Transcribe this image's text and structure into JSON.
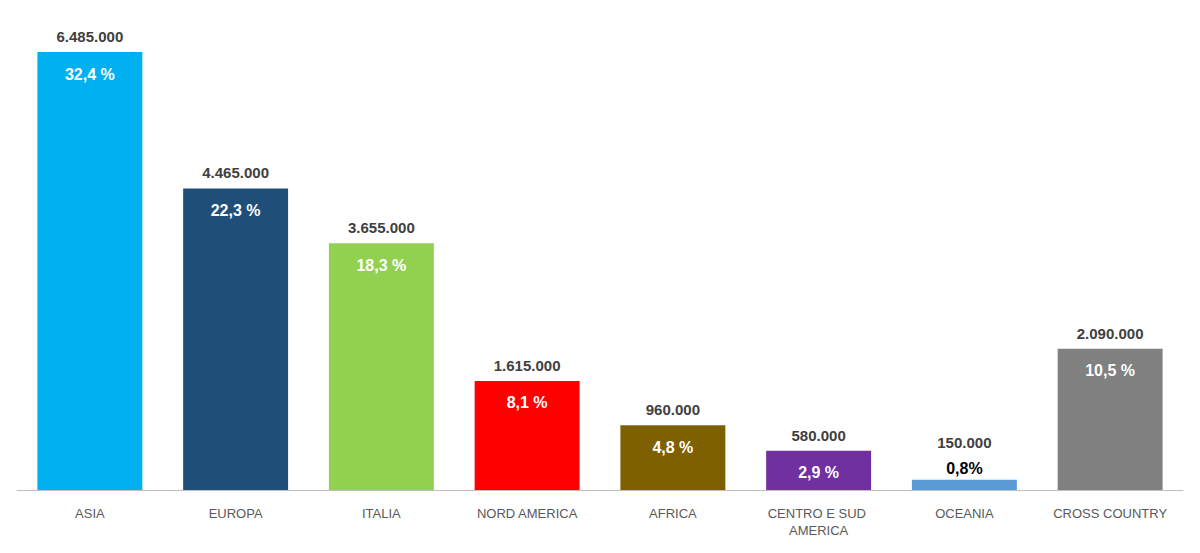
{
  "chart_data": {
    "type": "bar",
    "categories": [
      "ASIA",
      "EUROPA",
      "ITALIA",
      "NORD AMERICA",
      "AFRICA",
      "CENTRO E SUD AMERICA",
      "OCEANIA",
      "CROSS COUNTRY"
    ],
    "values": [
      6485000,
      4465000,
      3655000,
      1615000,
      960000,
      580000,
      150000,
      2090000
    ],
    "value_labels": [
      "6.485.000",
      "4.465.000",
      "3.655.000",
      "1.615.000",
      "960.000",
      "580.000",
      "150.000",
      "2.090.000"
    ],
    "shares": [
      32.4,
      22.3,
      18.3,
      8.1,
      4.8,
      2.9,
      0.8,
      10.5
    ],
    "share_labels": [
      "32,4 %",
      "22,3 %",
      "18,3 %",
      "8,1 %",
      "4,8 %",
      "2,9 %",
      "0,8%",
      "10,5 %"
    ],
    "colors": [
      "#00b0f0",
      "#1f4e79",
      "#92d050",
      "#ff0000",
      "#7f6000",
      "#7030a0",
      "#5b9bd5",
      "#808080"
    ],
    "ylim": [
      0,
      6485000
    ],
    "grid": false,
    "data_labels": true,
    "tick_labels": "x"
  }
}
